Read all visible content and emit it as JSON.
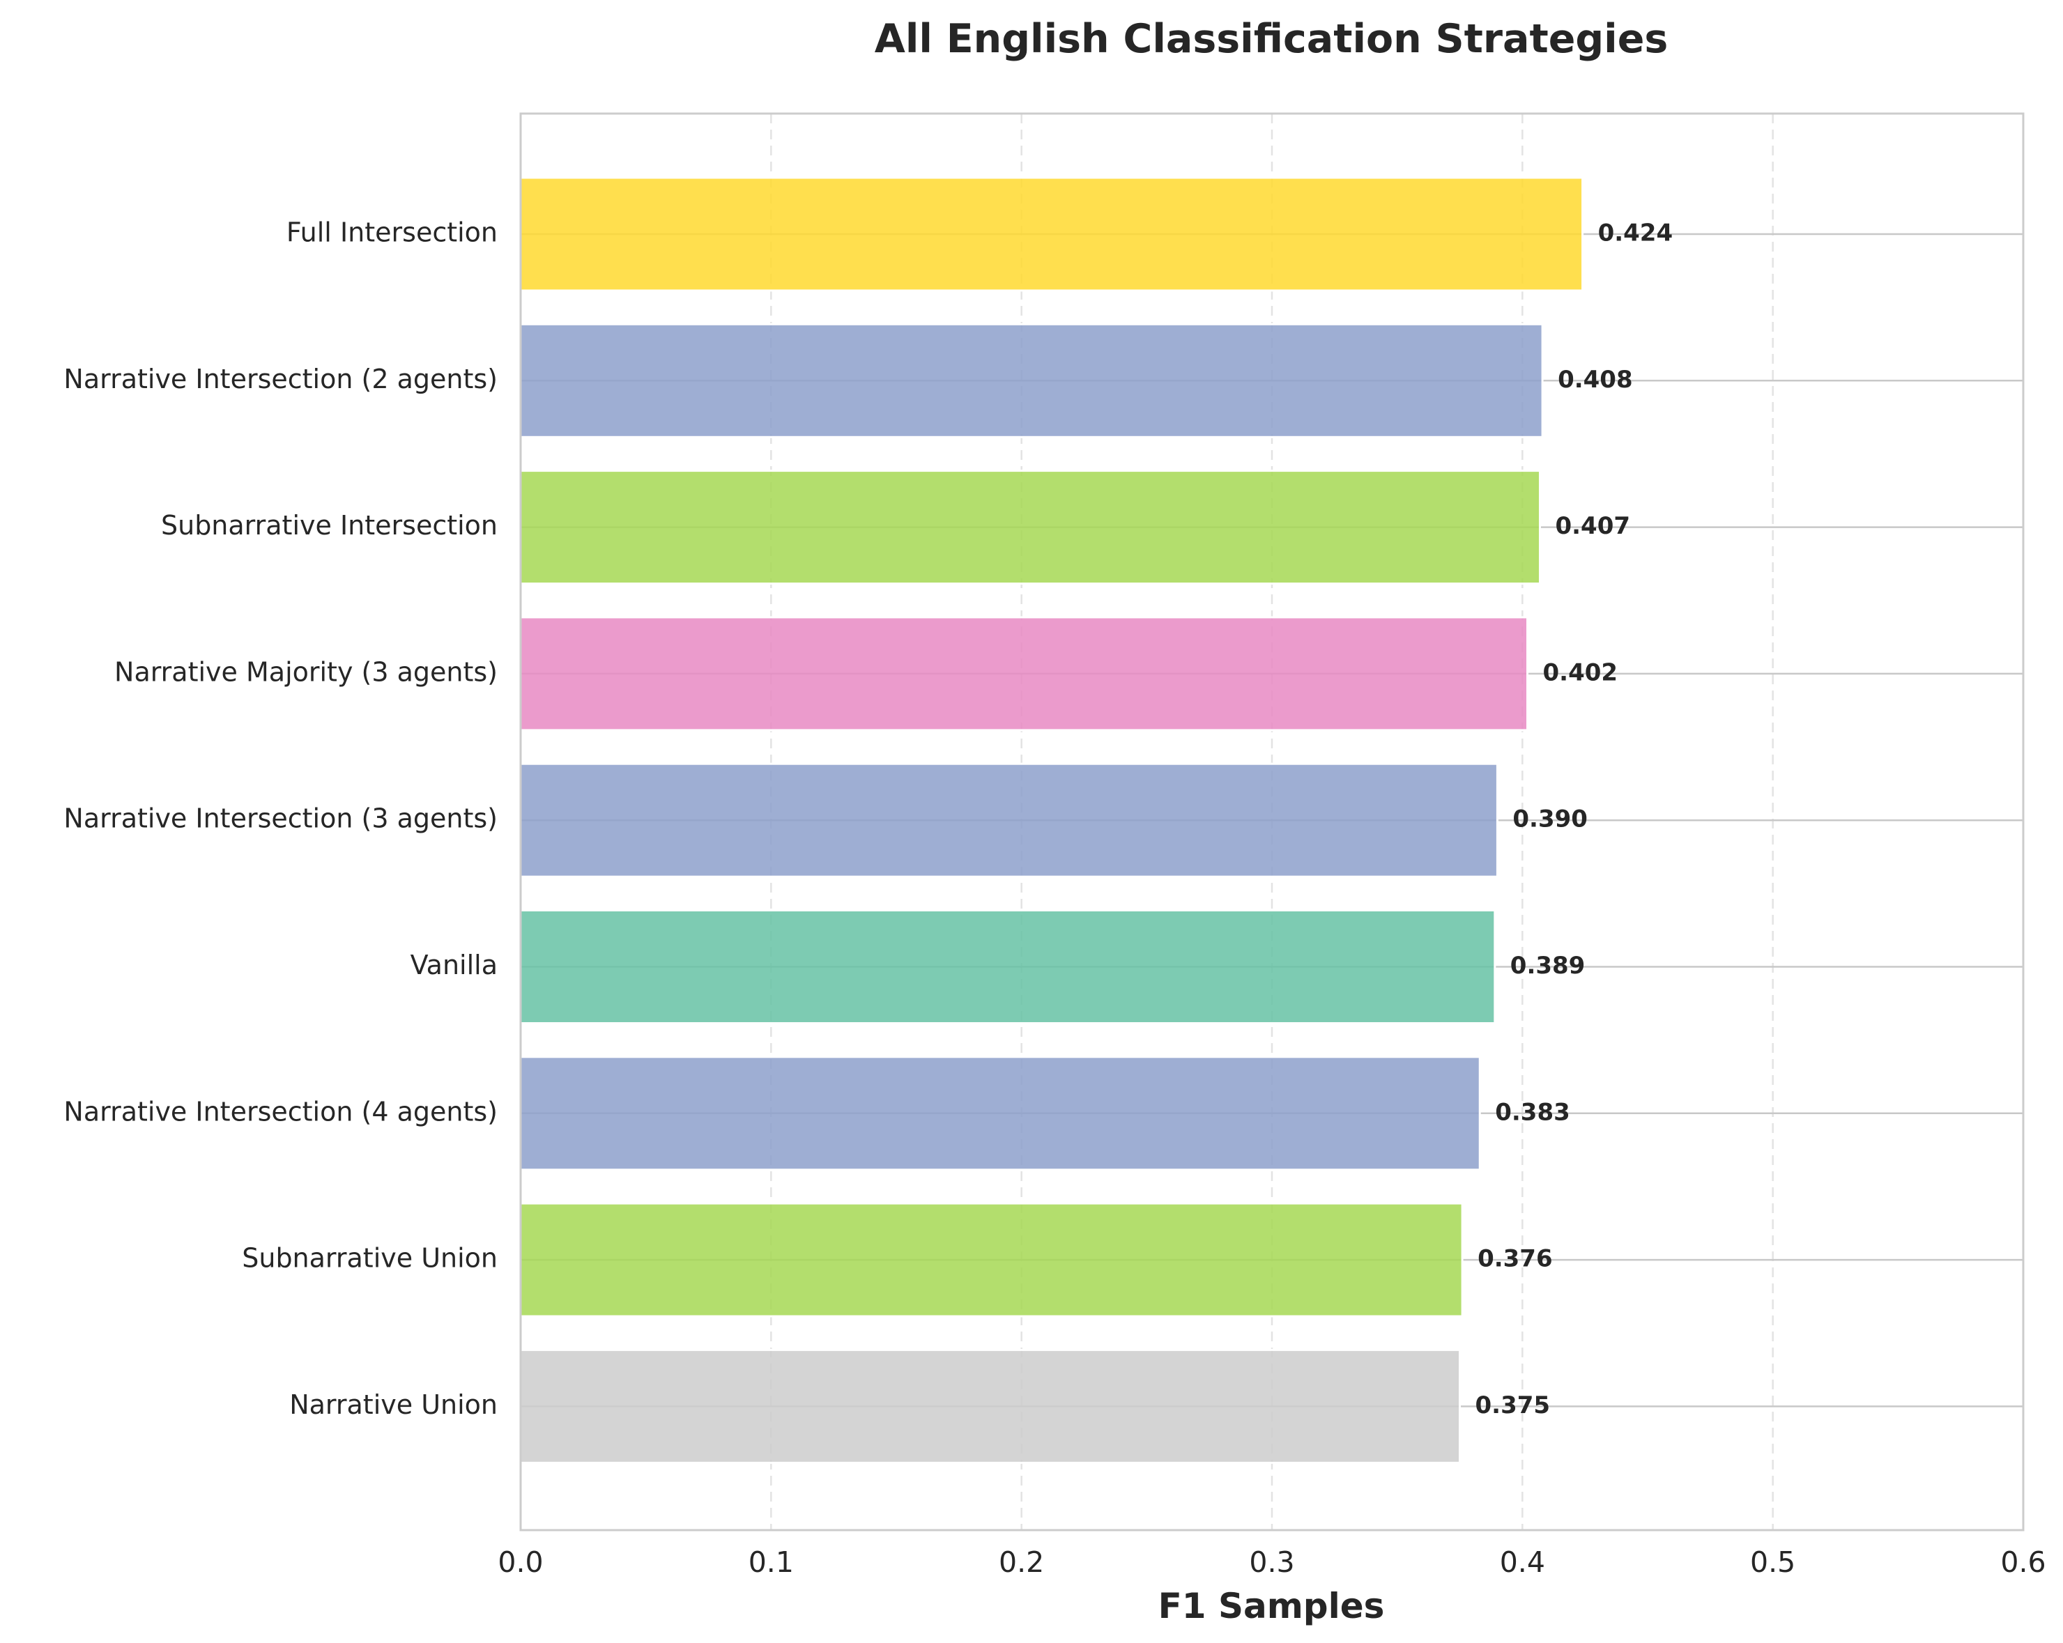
{
  "chart_data": {
    "type": "bar",
    "orientation": "horizontal",
    "title": "All English Classification Strategies",
    "xlabel": "F1 Samples",
    "ylabel": "",
    "xlim": [
      0.0,
      0.6
    ],
    "xticks": [
      0.0,
      0.1,
      0.2,
      0.3,
      0.4,
      0.5,
      0.6
    ],
    "xtick_labels": [
      "0.0",
      "0.1",
      "0.2",
      "0.3",
      "0.4",
      "0.5",
      "0.6"
    ],
    "grid": "x dashed",
    "categories": [
      "Full Intersection",
      "Narrative Intersection (2 agents)",
      "Subnarrative Intersection",
      "Narrative Majority (3 agents)",
      "Narrative Intersection (3 agents)",
      "Vanilla",
      "Narrative Intersection (4 agents)",
      "Subnarrative Union",
      "Narrative Union"
    ],
    "values": [
      0.424,
      0.408,
      0.407,
      0.402,
      0.39,
      0.389,
      0.383,
      0.376,
      0.375
    ],
    "value_labels": [
      "0.424",
      "0.408",
      "0.407",
      "0.402",
      "0.390",
      "0.389",
      "0.383",
      "0.376",
      "0.375"
    ],
    "colors": [
      "#ffd92f",
      "#8da0cb",
      "#a6d854",
      "#e78ac3",
      "#8da0cb",
      "#66c2a5",
      "#8da0cb",
      "#a6d854",
      "#cccccc"
    ]
  }
}
